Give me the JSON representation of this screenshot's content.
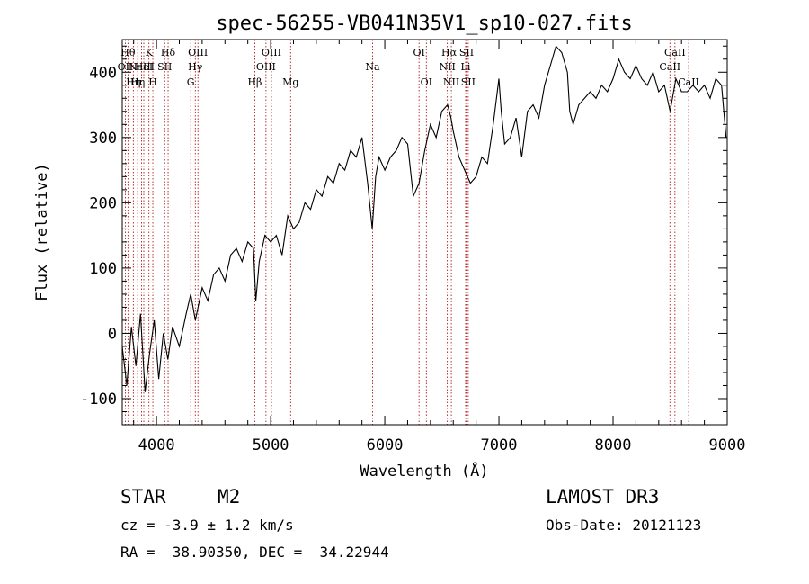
{
  "chart_data": {
    "type": "line",
    "title": "spec-56255-VB041N35V1_sp10-027.fits",
    "xlabel": "Wavelength (Å)",
    "ylabel": "Flux (relative)",
    "xlim": [
      3700,
      9000
    ],
    "ylim": [
      -140,
      450
    ],
    "xticks": [
      4000,
      5000,
      6000,
      7000,
      8000,
      9000
    ],
    "yticks": [
      -100,
      0,
      100,
      200,
      300,
      400
    ],
    "spectrum": {
      "x": [
        3700,
        3740,
        3780,
        3820,
        3860,
        3900,
        3940,
        3980,
        4020,
        4060,
        4100,
        4140,
        4200,
        4260,
        4300,
        4340,
        4400,
        4450,
        4500,
        4550,
        4600,
        4650,
        4700,
        4750,
        4800,
        4850,
        4870,
        4900,
        4950,
        5000,
        5050,
        5100,
        5150,
        5200,
        5250,
        5300,
        5350,
        5400,
        5450,
        5500,
        5550,
        5600,
        5650,
        5700,
        5750,
        5800,
        5850,
        5890,
        5920,
        5950,
        6000,
        6050,
        6100,
        6150,
        6200,
        6250,
        6300,
        6350,
        6400,
        6450,
        6500,
        6550,
        6580,
        6600,
        6650,
        6700,
        6750,
        6800,
        6850,
        6900,
        6950,
        7000,
        7020,
        7050,
        7100,
        7150,
        7200,
        7250,
        7300,
        7350,
        7400,
        7450,
        7500,
        7550,
        7600,
        7620,
        7650,
        7700,
        7750,
        7800,
        7850,
        7900,
        7950,
        8000,
        8050,
        8100,
        8150,
        8200,
        8250,
        8300,
        8350,
        8400,
        8450,
        8500,
        8550,
        8600,
        8650,
        8700,
        8750,
        8800,
        8850,
        8900,
        8950,
        8990
      ],
      "y": [
        -20,
        -80,
        10,
        -50,
        30,
        -90,
        -30,
        20,
        -70,
        0,
        -40,
        10,
        -20,
        30,
        60,
        20,
        70,
        50,
        90,
        100,
        80,
        120,
        130,
        110,
        140,
        130,
        50,
        110,
        150,
        140,
        150,
        120,
        180,
        160,
        170,
        200,
        190,
        220,
        210,
        240,
        230,
        260,
        250,
        280,
        270,
        300,
        230,
        160,
        240,
        270,
        250,
        270,
        280,
        300,
        290,
        210,
        230,
        280,
        320,
        300,
        340,
        350,
        330,
        310,
        270,
        250,
        230,
        240,
        270,
        260,
        320,
        390,
        340,
        290,
        300,
        330,
        270,
        340,
        350,
        330,
        380,
        410,
        440,
        430,
        400,
        340,
        320,
        350,
        360,
        370,
        360,
        380,
        370,
        390,
        420,
        400,
        390,
        410,
        390,
        380,
        400,
        370,
        380,
        340,
        390,
        370,
        370,
        380,
        370,
        380,
        360,
        390,
        380,
        300
      ],
      "color": "#000000"
    },
    "emission_lines": [
      {
        "x": 3727,
        "label": "OII",
        "row": 2
      },
      {
        "x": 3750,
        "label": "Hθ",
        "row": 1
      },
      {
        "x": 3797,
        "label": "Hη",
        "row": 3
      },
      {
        "x": 3835,
        "label": "Hη",
        "row": 3
      },
      {
        "x": 3869,
        "label": "NeIII",
        "row": 2
      },
      {
        "x": 3889,
        "label": "HeI",
        "row": 2
      },
      {
        "x": 3934,
        "label": "K",
        "row": 1
      },
      {
        "x": 3968,
        "label": "H",
        "row": 3
      },
      {
        "x": 4072,
        "label": "SII",
        "row": 2
      },
      {
        "x": 4102,
        "label": "Hδ",
        "row": 1
      },
      {
        "x": 4300,
        "label": "G",
        "row": 3
      },
      {
        "x": 4340,
        "label": "Hγ",
        "row": 2
      },
      {
        "x": 4363,
        "label": "OIII",
        "row": 1
      },
      {
        "x": 4861,
        "label": "Hβ",
        "row": 3
      },
      {
        "x": 4959,
        "label": "OIII",
        "row": 2
      },
      {
        "x": 5007,
        "label": "OIII",
        "row": 1
      },
      {
        "x": 5175,
        "label": "Mg",
        "row": 3
      },
      {
        "x": 5893,
        "label": "Na",
        "row": 2
      },
      {
        "x": 6300,
        "label": "OI",
        "row": 1
      },
      {
        "x": 6364,
        "label": "OI",
        "row": 3
      },
      {
        "x": 6548,
        "label": "NII",
        "row": 2
      },
      {
        "x": 6563,
        "label": "Hα",
        "row": 1
      },
      {
        "x": 6583,
        "label": "NII",
        "row": 3
      },
      {
        "x": 6708,
        "label": "Li",
        "row": 2
      },
      {
        "x": 6716,
        "label": "SII",
        "row": 1
      },
      {
        "x": 6731,
        "label": "SII",
        "row": 3
      },
      {
        "x": 8498,
        "label": "CaII",
        "row": 2
      },
      {
        "x": 8542,
        "label": "CaII",
        "row": 1
      },
      {
        "x": 8662,
        "label": "CaII",
        "row": 3
      }
    ],
    "line_color": "#aa0000"
  },
  "info": {
    "class_label": "STAR",
    "subclass": "M2",
    "redshift": "cz = -3.9 ± 1.2 km/s",
    "coords": "RA =  38.90350, DEC =  34.22944",
    "survey": "LAMOST DR3",
    "obs_date": "Obs-Date: 20121123"
  }
}
